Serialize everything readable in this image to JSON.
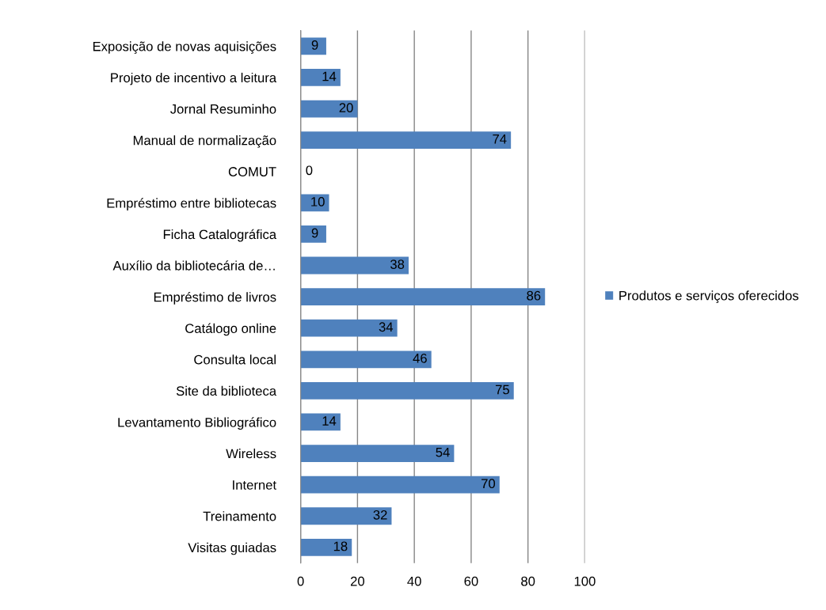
{
  "chart_data": {
    "type": "bar",
    "orientation": "horizontal",
    "categories": [
      "Exposição de novas aquisições",
      "Projeto de incentivo a leitura",
      "Jornal Resuminho",
      "Manual de normalização",
      "COMUT",
      "Empréstimo entre bibliotecas",
      "Ficha Catalográfica",
      "Auxílio da bibliotecária de…",
      "Empréstimo de livros",
      "Catálogo online",
      "Consulta local",
      "Site da biblioteca",
      "Levantamento Bibliográfico",
      "Wireless",
      "Internet",
      "Treinamento",
      "Visitas guiadas"
    ],
    "series": [
      {
        "name": "Produtos e serviços oferecidos",
        "color": "#4f81bd",
        "values": [
          9,
          14,
          20,
          74,
          0,
          10,
          9,
          38,
          86,
          34,
          46,
          75,
          14,
          54,
          70,
          32,
          18
        ]
      }
    ],
    "xlim": [
      0,
      100
    ],
    "xticks": [
      0,
      20,
      40,
      60,
      80,
      100
    ],
    "grid": "x",
    "legend": "right",
    "data_labels": true
  }
}
